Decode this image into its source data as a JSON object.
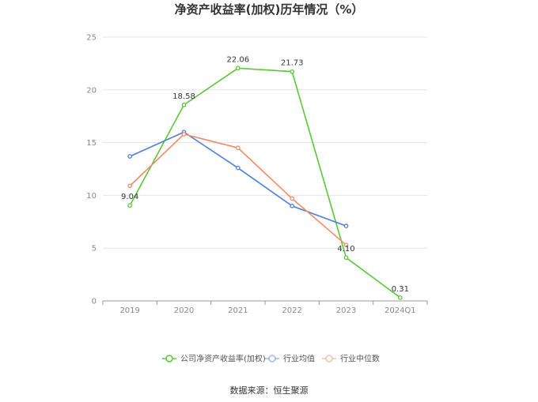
{
  "chart_data": {
    "type": "line",
    "title": "净资产收益率(加权)历年情况（%）",
    "xlabel": "",
    "ylabel": "",
    "categories": [
      "2019",
      "2020",
      "2021",
      "2022",
      "2023",
      "2024Q1"
    ],
    "ylim": [
      0,
      25
    ],
    "yticks": [
      0,
      5,
      10,
      15,
      20,
      25
    ],
    "grid": true,
    "legend_position": "bottom",
    "series": [
      {
        "name": "公司净资产收益率(加权)",
        "color": "#5cc639",
        "values": [
          9.04,
          18.58,
          22.06,
          21.73,
          4.1,
          0.31
        ],
        "labels": [
          "9.04",
          "18.58",
          "22.06",
          "21.73",
          "4.10",
          "0.31"
        ]
      },
      {
        "name": "行业均值",
        "color": "#4f7fd9",
        "values": [
          13.7,
          16.0,
          12.6,
          9.0,
          7.1,
          null
        ]
      },
      {
        "name": "行业中位数",
        "color": "#f08c67",
        "values": [
          10.9,
          15.8,
          14.5,
          9.7,
          5.3,
          null
        ]
      }
    ]
  },
  "source": "数据来源：恒生聚源"
}
